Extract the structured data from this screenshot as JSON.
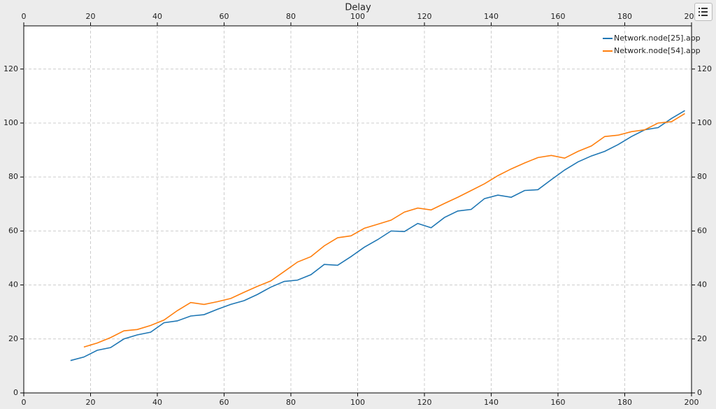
{
  "chart_data": {
    "type": "line",
    "xlabel": "Delay",
    "xlim": [
      0,
      200
    ],
    "xticks": [
      0,
      20,
      40,
      60,
      80,
      100,
      120,
      140,
      160,
      180,
      200
    ],
    "ylim": [
      0,
      136
    ],
    "yticks": [
      0,
      20,
      40,
      60,
      80,
      100,
      120
    ],
    "grid": true,
    "legend": "upper right",
    "series": [
      {
        "name": "Network.node[25].app",
        "color": "#1f77b4",
        "x": [
          14,
          18,
          22,
          26,
          30,
          34,
          38,
          42,
          46,
          50,
          54,
          58,
          62,
          66,
          70,
          74,
          78,
          82,
          86,
          90,
          94,
          98,
          102,
          106,
          110,
          114,
          118,
          122,
          126,
          130,
          134,
          138,
          142,
          146,
          150,
          154,
          158,
          162,
          166,
          170,
          174,
          178,
          182,
          186,
          190,
          194,
          198
        ],
        "values": [
          12,
          13.3,
          15.8,
          16.8,
          20,
          21.5,
          22.5,
          26,
          26.7,
          28.5,
          29,
          31,
          32.8,
          34.2,
          36.5,
          39.2,
          41.3,
          41.8,
          43.8,
          47.6,
          47.3,
          50.5,
          54,
          56.8,
          60,
          59.8,
          62.8,
          61.2,
          65,
          67.4,
          68,
          72,
          73.3,
          72.5,
          75,
          75.3,
          79,
          82.6,
          85.6,
          87.8,
          89.5,
          92,
          95,
          97.5,
          98.3,
          101.7,
          104.6
        ]
      },
      {
        "name": "Network.node[54].app",
        "color": "#ff7f0e",
        "x": [
          18,
          22,
          26,
          30,
          34,
          38,
          42,
          46,
          50,
          54,
          58,
          62,
          66,
          70,
          74,
          78,
          82,
          86,
          90,
          94,
          98,
          102,
          106,
          110,
          114,
          118,
          122,
          126,
          130,
          134,
          138,
          142,
          146,
          150,
          154,
          158,
          162,
          166,
          170,
          174,
          178,
          182,
          186,
          190,
          194,
          198
        ],
        "values": [
          17,
          18.5,
          20.5,
          23,
          23.5,
          25,
          27,
          30.5,
          33.5,
          32.8,
          33.8,
          35,
          37.3,
          39.5,
          41.5,
          45,
          48.5,
          50.5,
          54.5,
          57.5,
          58.2,
          61,
          62.5,
          64,
          67,
          68.5,
          67.8,
          70.2,
          72.5,
          75,
          77.5,
          80.5,
          83,
          85.2,
          87.2,
          88,
          87,
          89.5,
          91.5,
          95,
          95.5,
          96.8,
          97.5,
          100,
          100.5,
          103.5
        ]
      }
    ]
  }
}
